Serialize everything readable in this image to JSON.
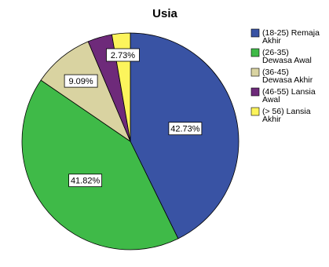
{
  "chart_data": {
    "type": "pie",
    "title": "Usia",
    "categories": [
      "(18-25) Remaja Akhir",
      "(26-35) Dewasa Awal",
      "(36-45) Dewasa Akhir",
      "(46-55) Lansia Awal",
      "(> 56) Lansia Akhir"
    ],
    "legend_lines": [
      [
        "(18-25) Remaja",
        "Akhir"
      ],
      [
        "(26-35)",
        "Dewasa Awal"
      ],
      [
        "(36-45)",
        "Dewasa Akhir"
      ],
      [
        "(46-55) Lansia",
        "Awal"
      ],
      [
        "(> 56) Lansia",
        "Akhir"
      ]
    ],
    "values": [
      42.73,
      41.82,
      9.09,
      3.64,
      2.73
    ],
    "data_labels": [
      "42.73%",
      "41.82%",
      "9.09%",
      "",
      "2.73%"
    ],
    "colors": [
      "#3953a4",
      "#3fba48",
      "#d9d3a1",
      "#6e2a7a",
      "#fcf45c"
    ],
    "legend_position": "right",
    "start_angle_deg": 0,
    "direction": "clockwise"
  }
}
